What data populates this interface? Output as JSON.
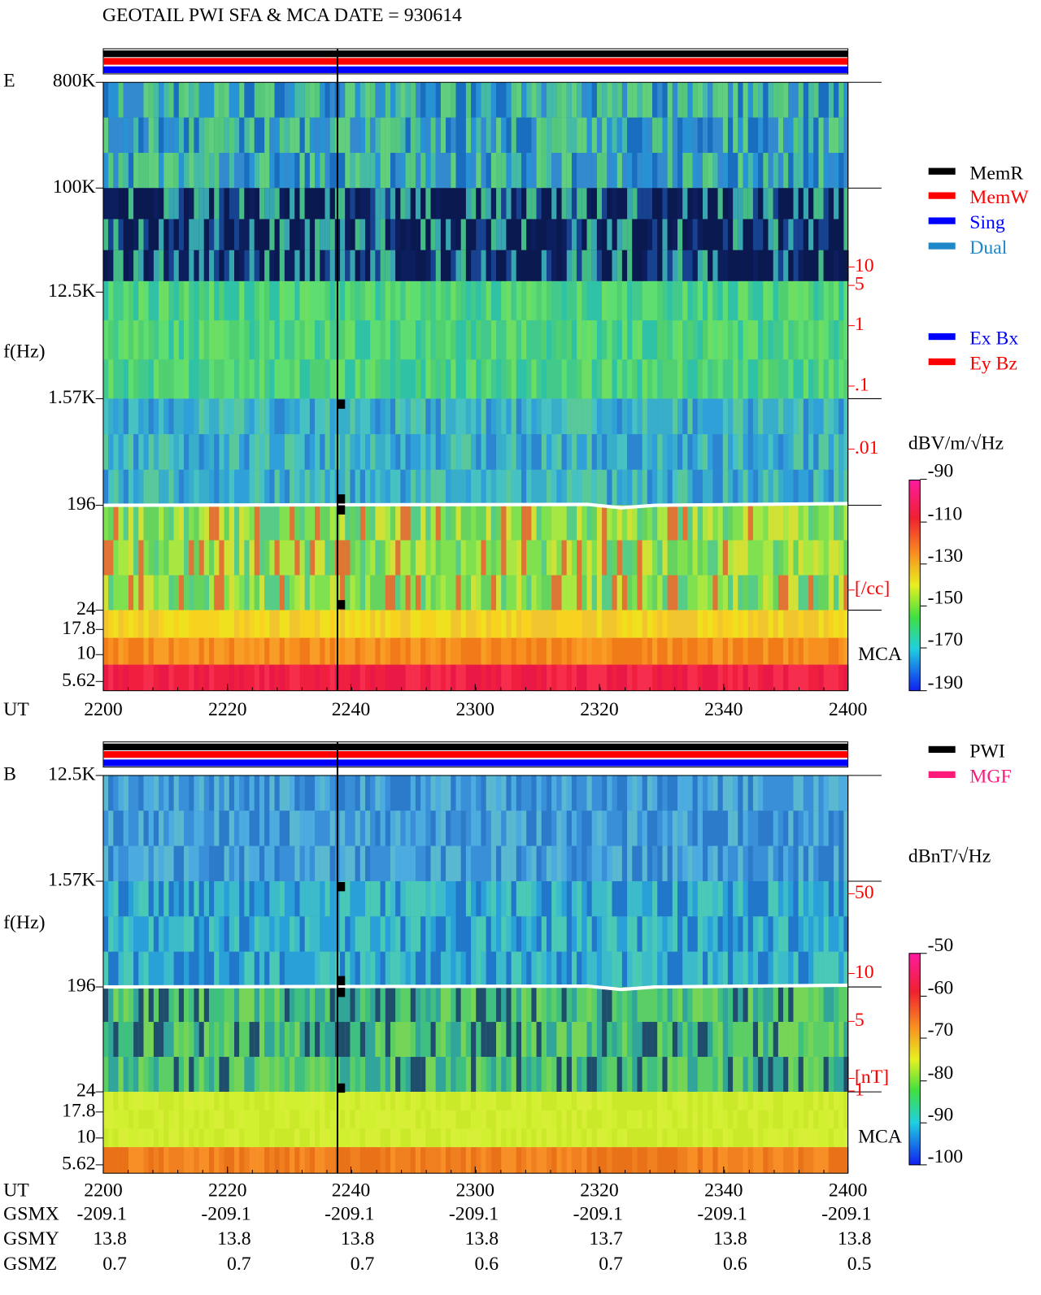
{
  "title": "GEOTAIL  PWI SFA & MCA   DATE = 930614",
  "panels": [
    {
      "label": "E",
      "freq_axis_label": "f(Hz)",
      "freq_ticks": [
        "800K",
        "100K",
        "12.5K",
        "1.57K",
        "196",
        "24",
        "17.8",
        "10",
        "5.62"
      ],
      "right_scale": [
        "10",
        "5",
        "1",
        ".1",
        ".01",
        "[/cc]"
      ],
      "mca_label": "MCA",
      "legend": [
        {
          "label": "MemR",
          "color": "#000000"
        },
        {
          "label": "MemW",
          "color": "#ff0000"
        },
        {
          "label": "Sing",
          "color": "#0000ff"
        },
        {
          "label": "Dual",
          "color": "#1e88c8"
        },
        {
          "label": "Ex Bx",
          "color": "#0000ff"
        },
        {
          "label": "Ey Bz",
          "color": "#ff0000"
        }
      ],
      "colorbar": {
        "title": "dBV/m/√Hz",
        "ticks": [
          "-90",
          "-110",
          "-130",
          "-150",
          "-170",
          "-190"
        ]
      },
      "time_axis": {
        "label": "UT",
        "ticks": [
          "2200",
          "2220",
          "2240",
          "2300",
          "2320",
          "2340",
          "2400"
        ]
      }
    },
    {
      "label": "B",
      "freq_axis_label": "f(Hz)",
      "freq_ticks": [
        "12.5K",
        "1.57K",
        "196",
        "24",
        "17.8",
        "10",
        "5.62"
      ],
      "right_scale": [
        "50",
        "10",
        "5",
        "1",
        "[nT]"
      ],
      "mca_label": "MCA",
      "legend": [
        {
          "label": "PWI",
          "color": "#000000"
        },
        {
          "label": "MGF",
          "color": "#ff1a7a"
        }
      ],
      "colorbar": {
        "title": "dBnT/√Hz",
        "ticks": [
          "-50",
          "-60",
          "-70",
          "-80",
          "-90",
          "-100"
        ]
      },
      "time_axis": {
        "label": "UT",
        "ticks": [
          "2200",
          "2220",
          "2240",
          "2300",
          "2320",
          "2340",
          "2400"
        ]
      }
    }
  ],
  "orbit": [
    {
      "label": "GSMX",
      "values": [
        "-209.1",
        "-209.1",
        "-209.1",
        "-209.1",
        "-209.1",
        "-209.1",
        "-209.1"
      ]
    },
    {
      "label": "GSMY",
      "values": [
        "13.8",
        "13.8",
        "13.8",
        "13.8",
        "13.7",
        "13.8",
        "13.8"
      ]
    },
    {
      "label": "GSMZ",
      "values": [
        "0.7",
        "0.7",
        "0.7",
        "0.6",
        "0.7",
        "0.6",
        "0.5"
      ]
    }
  ]
}
